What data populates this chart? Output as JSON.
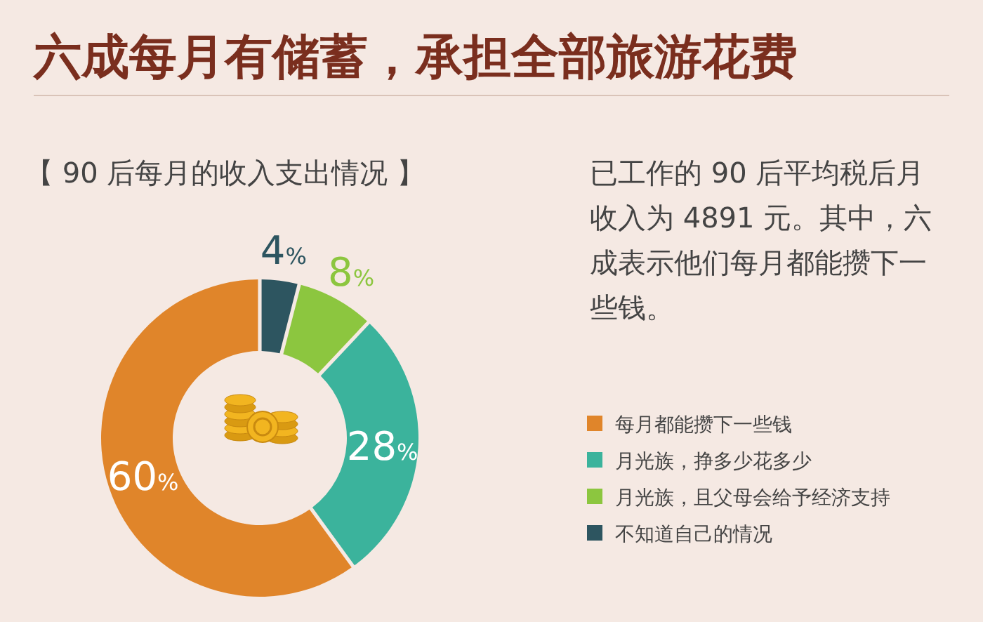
{
  "chart_data": {
    "type": "donut",
    "title": "六成每月有储蓄，承担全部旅游花费",
    "subtitle": "【 90 后每月的收入支出情况 】",
    "categories": [
      "每月都能攒下一些钱",
      "月光族，挣多少花多少",
      "月光族，且父母会给予经济支持",
      "不知道自己的情况"
    ],
    "values": [
      60,
      28,
      8,
      4
    ],
    "colors": [
      "#e0852a",
      "#3bb39c",
      "#8cc63f",
      "#2d5560"
    ],
    "value_labels": [
      "60%",
      "28%",
      "8%",
      "4%"
    ],
    "legend": "bottom right",
    "annotations": [
      "已工作的 90 后平均税后月收入为 4891 元。其中，六成表示他们每月都能攒下一些钱。"
    ]
  }
}
